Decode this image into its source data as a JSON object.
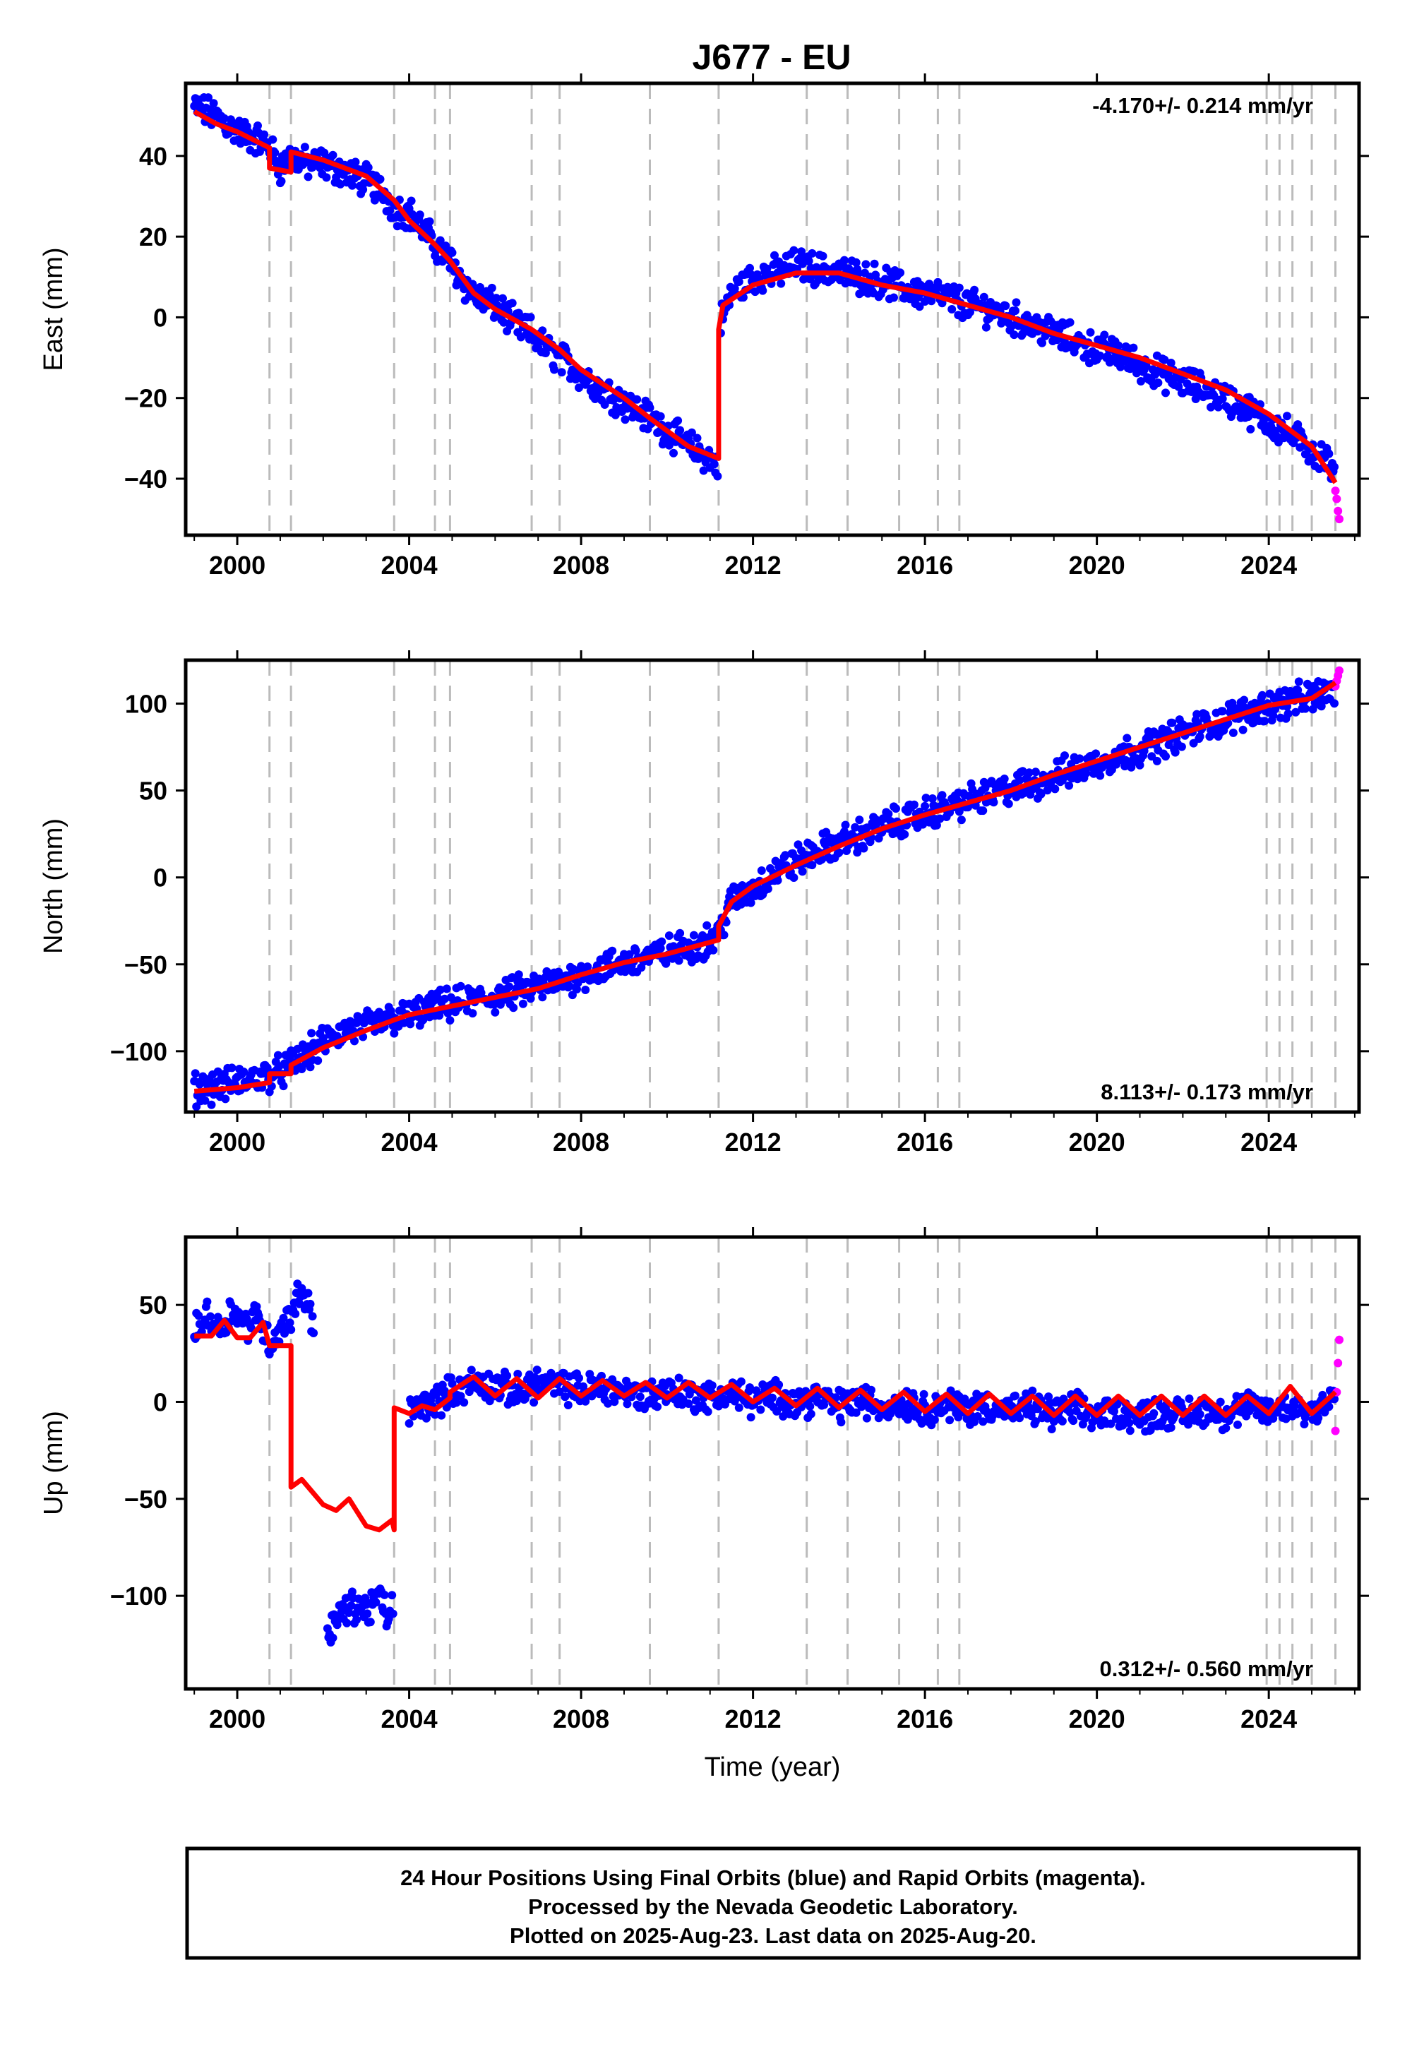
{
  "figure": {
    "title": "J677 - EU",
    "footer": [
      "24 Hour Positions Using Final Orbits (blue) and Rapid Orbits (magenta).",
      "Processed by the Nevada Geodetic Laboratory.",
      "Plotted on 2025-Aug-23. Last data on 2025-Aug-20."
    ],
    "colors": {
      "final_orbits": "#0000ff",
      "rapid_orbits": "#ff00ff",
      "model_fit": "#ff0000",
      "event_lines": "#bbbbbb"
    }
  },
  "chart_data": [
    {
      "type": "scatter",
      "panel": "east",
      "title": "",
      "xlabel": "",
      "ylabel": "East (mm)",
      "xlim": [
        1998.8,
        2026.1
      ],
      "ylim": [
        -54,
        58
      ],
      "xticks": [
        2000,
        2004,
        2008,
        2012,
        2016,
        2020,
        2024
      ],
      "yticks": [
        -40,
        -20,
        0,
        20,
        40
      ],
      "rate_label": "-4.170+/- 0.214 mm/yr",
      "rate_position": "top-right",
      "event_lines": [
        2000.75,
        2001.25,
        2003.65,
        2004.6,
        2004.95,
        2006.85,
        2007.5,
        2009.6,
        2011.2,
        2013.25,
        2014.2,
        2015.4,
        2016.3,
        2016.8,
        2023.95,
        2024.25,
        2024.55,
        2025.0,
        2025.55
      ],
      "series": [
        {
          "role": "final_orbits",
          "x": [
            1999.0,
            1999.5,
            2000.0,
            2000.5,
            2000.75,
            2001.0,
            2001.25,
            2001.6,
            2002.0,
            2002.5,
            2003.0,
            2003.4,
            2003.65,
            2004.0,
            2004.3,
            2004.6,
            2004.95,
            2005.3,
            2005.7,
            2006.0,
            2006.5,
            2006.85,
            2007.2,
            2007.5,
            2008.0,
            2008.5,
            2009.0,
            2009.6,
            2010.0,
            2010.5,
            2011.0,
            2011.2,
            2011.25,
            2011.5,
            2012.0,
            2012.5,
            2013.0,
            2013.5,
            2014.0,
            2014.5,
            2015.0,
            2015.5,
            2016.0,
            2016.5,
            2017.0,
            2017.5,
            2018.0,
            2018.5,
            2019.0,
            2019.5,
            2020.0,
            2020.5,
            2021.0,
            2021.5,
            2022.0,
            2022.5,
            2023.0,
            2023.5,
            2024.0,
            2024.5,
            2025.0,
            2025.4,
            2025.55
          ],
          "y": [
            52,
            50,
            46,
            44,
            42,
            37,
            40,
            38,
            38,
            36,
            34,
            31,
            27,
            26,
            22,
            18,
            14,
            8,
            4,
            3,
            -2,
            -4,
            -8,
            -10,
            -14,
            -18,
            -21,
            -25,
            -28,
            -32,
            -35,
            -37,
            -1,
            6,
            10,
            11,
            13,
            12,
            11,
            10,
            9,
            7,
            6,
            5,
            3,
            2,
            0,
            -2,
            -4,
            -6,
            -8,
            -9,
            -12,
            -14,
            -16,
            -18,
            -20,
            -23,
            -26,
            -29,
            -33,
            -36,
            -40
          ]
        },
        {
          "role": "rapid_orbits",
          "x": [
            2025.55,
            2025.58,
            2025.61,
            2025.64
          ],
          "y": [
            -43,
            -45,
            -48,
            -50
          ]
        },
        {
          "role": "model_fit",
          "x": [
            1999.0,
            1999.5,
            2000.0,
            2000.75,
            2000.75,
            2001.25,
            2001.25,
            2002.0,
            2003.0,
            2003.65,
            2004.0,
            2004.6,
            2004.95,
            2005.5,
            2006.0,
            2006.85,
            2007.5,
            2008.0,
            2009.0,
            2009.6,
            2010.5,
            2011.2,
            2011.2,
            2011.3,
            2012.0,
            2013.0,
            2014.0,
            2015.0,
            2016.0,
            2017.0,
            2018.0,
            2019.0,
            2020.0,
            2021.0,
            2022.0,
            2023.0,
            2024.0,
            2025.0,
            2025.55
          ],
          "y": [
            51,
            48,
            46,
            42,
            37,
            36,
            41,
            39,
            35,
            29,
            24,
            18,
            14,
            6,
            2,
            -3,
            -8,
            -13,
            -20,
            -25,
            -32,
            -35,
            -3,
            3,
            8,
            11,
            11,
            8,
            6,
            3,
            0,
            -4,
            -7,
            -10,
            -14,
            -18,
            -24,
            -32,
            -41
          ]
        }
      ]
    },
    {
      "type": "scatter",
      "panel": "north",
      "title": "",
      "xlabel": "",
      "ylabel": "North (mm)",
      "xlim": [
        1998.8,
        2026.1
      ],
      "ylim": [
        -135,
        125
      ],
      "xticks": [
        2000,
        2004,
        2008,
        2012,
        2016,
        2020,
        2024
      ],
      "yticks": [
        -100,
        -50,
        0,
        50,
        100
      ],
      "rate_label": "8.113+/- 0.173 mm/yr",
      "rate_position": "bottom-right",
      "event_lines": [
        2000.75,
        2001.25,
        2003.65,
        2004.6,
        2004.95,
        2006.85,
        2007.5,
        2009.6,
        2011.2,
        2013.25,
        2014.2,
        2015.4,
        2016.3,
        2016.8,
        2023.95,
        2024.25,
        2024.55,
        2025.0,
        2025.55
      ],
      "series": [
        {
          "role": "final_orbits",
          "x": [
            1999.0,
            1999.5,
            2000.0,
            2000.5,
            2001.0,
            2001.5,
            2002.0,
            2002.5,
            2003.0,
            2003.5,
            2004.0,
            2004.5,
            2005.0,
            2005.5,
            2006.0,
            2006.5,
            2007.0,
            2007.5,
            2008.0,
            2008.5,
            2009.0,
            2009.5,
            2010.0,
            2010.5,
            2011.0,
            2011.2,
            2011.5,
            2012.0,
            2012.5,
            2013.0,
            2013.5,
            2014.0,
            2014.5,
            2015.0,
            2015.5,
            2016.0,
            2016.5,
            2017.0,
            2017.5,
            2018.0,
            2018.5,
            2019.0,
            2019.5,
            2020.0,
            2020.5,
            2021.0,
            2021.5,
            2022.0,
            2022.5,
            2023.0,
            2023.5,
            2024.0,
            2024.5,
            2025.0,
            2025.55
          ],
          "y": [
            -122,
            -120,
            -118,
            -115,
            -112,
            -104,
            -95,
            -88,
            -86,
            -82,
            -80,
            -76,
            -73,
            -71,
            -69,
            -66,
            -63,
            -60,
            -56,
            -52,
            -49,
            -46,
            -43,
            -40,
            -36,
            -32,
            -14,
            -7,
            3,
            9,
            15,
            20,
            24,
            29,
            33,
            37,
            40,
            44,
            47,
            51,
            54,
            58,
            62,
            66,
            70,
            74,
            78,
            83,
            87,
            91,
            95,
            99,
            101,
            104,
            108
          ]
        },
        {
          "role": "rapid_orbits",
          "x": [
            2025.55,
            2025.58,
            2025.61,
            2025.64
          ],
          "y": [
            110,
            113,
            116,
            119
          ]
        },
        {
          "role": "model_fit",
          "x": [
            1999.0,
            2000.0,
            2000.75,
            2000.75,
            2001.25,
            2001.25,
            2002.0,
            2003.0,
            2003.65,
            2004.0,
            2005.0,
            2006.0,
            2007.0,
            2008.0,
            2009.0,
            2010.0,
            2011.2,
            2011.2,
            2011.5,
            2012.0,
            2013.0,
            2014.0,
            2015.0,
            2016.0,
            2017.0,
            2018.0,
            2019.0,
            2020.0,
            2021.0,
            2022.0,
            2023.0,
            2024.0,
            2025.0,
            2025.55
          ],
          "y": [
            -123,
            -121,
            -118,
            -113,
            -113,
            -108,
            -98,
            -88,
            -82,
            -79,
            -74,
            -69,
            -64,
            -56,
            -49,
            -44,
            -36,
            -28,
            -14,
            -5,
            7,
            18,
            28,
            36,
            43,
            50,
            59,
            67,
            75,
            83,
            91,
            99,
            103,
            112
          ]
        }
      ]
    },
    {
      "type": "scatter",
      "panel": "up",
      "title": "",
      "xlabel": "Time (year)",
      "ylabel": "Up (mm)",
      "xlim": [
        1998.8,
        2026.1
      ],
      "ylim": [
        -148,
        85
      ],
      "xticks": [
        2000,
        2004,
        2008,
        2012,
        2016,
        2020,
        2024
      ],
      "yticks": [
        -100,
        -50,
        0,
        50
      ],
      "rate_label": "0.312+/- 0.560 mm/yr",
      "rate_position": "bottom-right",
      "event_lines": [
        2000.75,
        2001.25,
        2003.65,
        2004.6,
        2004.95,
        2006.85,
        2007.5,
        2009.6,
        2011.2,
        2013.25,
        2014.2,
        2015.4,
        2016.3,
        2016.8,
        2023.95,
        2024.25,
        2024.55,
        2025.0,
        2025.55
      ],
      "series": [
        {
          "role": "final_orbits",
          "x": [
            1999.0,
            1999.3,
            1999.6,
            1999.9,
            2000.2,
            2000.5,
            2000.75,
            2001.25,
            2001.5,
            2001.8,
            2002.1,
            2002.4,
            2002.7,
            2003.0,
            2003.3,
            2003.5,
            2003.65,
            2004.0,
            2004.5,
            2005.0,
            2005.5,
            2006.0,
            2006.5,
            2007.0,
            2007.5,
            2008.0,
            2008.5,
            2009.0,
            2009.5,
            2010.0,
            2010.5,
            2011.0,
            2011.5,
            2012.0,
            2012.5,
            2013.0,
            2013.5,
            2014.0,
            2014.5,
            2015.0,
            2015.5,
            2016.0,
            2016.5,
            2017.0,
            2017.5,
            2018.0,
            2018.5,
            2019.0,
            2019.5,
            2020.0,
            2020.5,
            2021.0,
            2021.5,
            2022.0,
            2022.5,
            2023.0,
            2023.5,
            2024.0,
            2024.5,
            2025.0,
            2025.55
          ],
          "y": [
            35,
            45,
            38,
            48,
            40,
            45,
            30,
            45,
            58,
            40,
            -120,
            -110,
            -105,
            -108,
            -100,
            -112,
            -102,
            -5,
            0,
            5,
            10,
            8,
            5,
            10,
            8,
            6,
            8,
            5,
            3,
            6,
            4,
            2,
            5,
            0,
            3,
            0,
            2,
            -2,
            1,
            -3,
            0,
            -4,
            -1,
            -4,
            -2,
            -5,
            -3,
            -6,
            -4,
            -7,
            -5,
            -8,
            -5,
            -7,
            -4,
            -6,
            -3,
            -5,
            -2,
            -5,
            5
          ]
        },
        {
          "role": "rapid_orbits",
          "x": [
            2025.55,
            2025.58,
            2025.61,
            2025.64
          ],
          "y": [
            -15,
            5,
            20,
            32
          ]
        },
        {
          "role": "model_fit",
          "x": [
            1999.0,
            1999.4,
            1999.7,
            2000.0,
            2000.3,
            2000.6,
            2000.75,
            2001.25,
            2001.25,
            2001.5,
            2002.0,
            2002.3,
            2002.6,
            2003.0,
            2003.3,
            2003.6,
            2003.65,
            2003.65,
            2004.0,
            2004.3,
            2004.6,
            2004.95,
            2004.95,
            2005.5,
            2006.0,
            2006.5,
            2007.0,
            2007.5,
            2008.0,
            2008.5,
            2009.0,
            2009.5,
            2010.0,
            2010.5,
            2011.0,
            2011.5,
            2012.0,
            2012.5,
            2013.0,
            2013.5,
            2014.0,
            2014.5,
            2015.0,
            2015.5,
            2016.0,
            2016.5,
            2017.0,
            2017.5,
            2018.0,
            2018.5,
            2019.0,
            2019.5,
            2020.0,
            2020.5,
            2021.0,
            2021.5,
            2022.0,
            2022.5,
            2023.0,
            2023.5,
            2024.0,
            2024.5,
            2025.0,
            2025.55
          ],
          "y": [
            34,
            34,
            42,
            33,
            33,
            41,
            29,
            29,
            -44,
            -40,
            -53,
            -56,
            -50,
            -64,
            -66,
            -61,
            -66,
            -3,
            -6,
            -2,
            -4,
            2,
            5,
            13,
            3,
            12,
            2,
            12,
            3,
            11,
            3,
            10,
            2,
            10,
            2,
            9,
            0,
            7,
            -2,
            7,
            -3,
            6,
            -4,
            5,
            -5,
            4,
            -6,
            4,
            -6,
            3,
            -7,
            3,
            -7,
            3,
            -7,
            3,
            -7,
            3,
            -7,
            3,
            -6,
            8,
            -6,
            5
          ]
        }
      ]
    }
  ]
}
